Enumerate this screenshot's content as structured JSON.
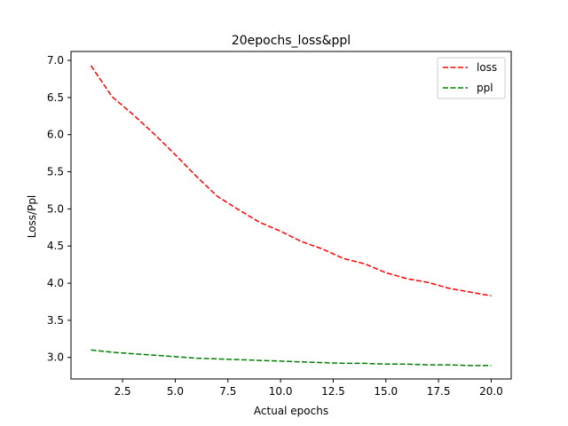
{
  "chart_data": {
    "type": "line",
    "title": "20epochs_loss&ppl",
    "xlabel": "Actual epochs",
    "ylabel": "Loss/Ppl",
    "xlim": [
      0.05,
      20.95
    ],
    "ylim": [
      2.71,
      7.12
    ],
    "xticks": [
      2.5,
      5.0,
      7.5,
      10.0,
      12.5,
      15.0,
      17.5,
      20.0
    ],
    "xtick_labels": [
      "2.5",
      "5.0",
      "7.5",
      "10.0",
      "12.5",
      "15.0",
      "17.5",
      "20.0"
    ],
    "yticks": [
      3.0,
      3.5,
      4.0,
      4.5,
      5.0,
      5.5,
      6.0,
      6.5,
      7.0
    ],
    "ytick_labels": [
      "3.0",
      "3.5",
      "4.0",
      "4.5",
      "5.0",
      "5.5",
      "6.0",
      "6.5",
      "7.0"
    ],
    "x": [
      1,
      2,
      3,
      4,
      5,
      6,
      7,
      8,
      9,
      10,
      11,
      12,
      13,
      14,
      15,
      16,
      17,
      18,
      19,
      20
    ],
    "series": [
      {
        "name": "loss",
        "color": "#ff0000",
        "values": [
          6.93,
          6.51,
          6.27,
          6.01,
          5.73,
          5.44,
          5.17,
          4.99,
          4.82,
          4.7,
          4.56,
          4.46,
          4.33,
          4.26,
          4.14,
          4.06,
          4.01,
          3.93,
          3.88,
          3.83
        ]
      },
      {
        "name": "ppl",
        "color": "#008000",
        "values": [
          3.1,
          3.07,
          3.05,
          3.03,
          3.01,
          2.99,
          2.98,
          2.97,
          2.96,
          2.95,
          2.94,
          2.93,
          2.92,
          2.92,
          2.91,
          2.91,
          2.9,
          2.9,
          2.89,
          2.89
        ]
      }
    ],
    "grid": false,
    "legend_position": "top-right",
    "line_style": "dashed"
  }
}
